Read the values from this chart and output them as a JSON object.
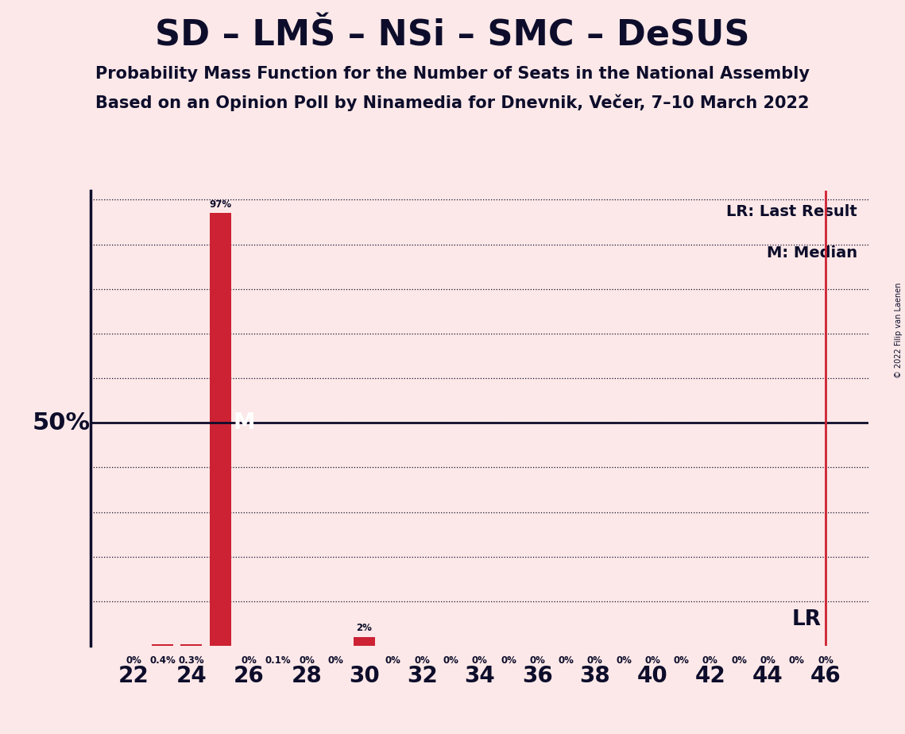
{
  "title": "SD – LMŠ – NSi – SMC – DeSUS",
  "subtitle1": "Probability Mass Function for the Number of Seats in the National Assembly",
  "subtitle2": "Based on an Opinion Poll by Ninamedia for Dnevnik, Večer, 7–10 March 2022",
  "copyright": "© 2022 Filip van Laenen",
  "x_min": 22,
  "x_max": 46,
  "y_max": 1.0,
  "median": 25,
  "last_result": 46,
  "fifty_pct_label": "50%",
  "lr_label": "LR",
  "m_label": "M",
  "lr_legend": "LR: Last Result",
  "m_legend": "M: Median",
  "bar_color": "#cc2233",
  "lr_color": "#cc2233",
  "background_color": "#fce8e8",
  "text_color": "#0d0d2b",
  "data": {
    "22": 0.0,
    "23": 0.004,
    "24": 0.003,
    "25": 0.97,
    "26": 0.0,
    "27": 0.001,
    "28": 0.0,
    "29": 0.0,
    "30": 0.02,
    "31": 0.0,
    "32": 0.0,
    "33": 0.0,
    "34": 0.0,
    "35": 0.0,
    "36": 0.0,
    "37": 0.0,
    "38": 0.0,
    "39": 0.0,
    "40": 0.0,
    "41": 0.0,
    "42": 0.0,
    "43": 0.0,
    "44": 0.0,
    "45": 0.0,
    "46": 0.0
  },
  "label_data": {
    "22": "0%",
    "23": "0.4%",
    "24": "0.3%",
    "25": "97%",
    "26": "0%",
    "27": "0.1%",
    "28": "0%",
    "29": "0%",
    "30": "2%",
    "31": "0%",
    "32": "0%",
    "33": "0%",
    "34": "0%",
    "35": "0%",
    "36": "0%",
    "37": "0%",
    "38": "0%",
    "39": "0%",
    "40": "0%",
    "41": "0%",
    "42": "0%",
    "43": "0%",
    "44": "0%",
    "45": "0%",
    "46": "0%"
  }
}
